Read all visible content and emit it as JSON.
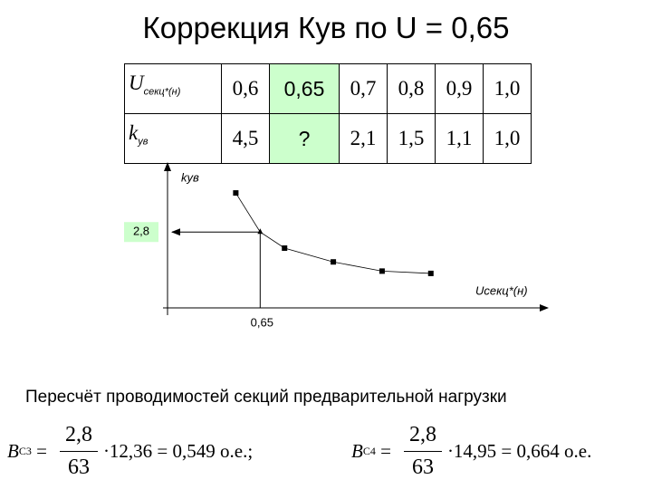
{
  "title": "Коррекция Кув по U = 0,65",
  "table": {
    "rows": [
      [
        {
          "symbol": "U",
          "sub": "секц*(н)"
        },
        "0,6",
        "0,65",
        "0,7",
        "0,8",
        "0,9",
        "1,0"
      ],
      [
        {
          "symbol": "k",
          "sub": "ув"
        },
        "4,5",
        "?",
        "2,1",
        "1,5",
        "1,1",
        "1,0"
      ]
    ]
  },
  "chart_data": {
    "type": "line",
    "y_label": "kув",
    "x_label": "Uсекц*(н)",
    "x": [
      0.6,
      0.65,
      0.7,
      0.8,
      0.9,
      1.0
    ],
    "values": [
      4.5,
      2.8,
      2.1,
      1.5,
      1.1,
      1.0
    ],
    "xlim": [
      0.46,
      1.24
    ],
    "ylim": [
      -0.5,
      6
    ],
    "color": "#000000",
    "annotations": [
      "2,8",
      "0,65"
    ]
  },
  "caption": "Пересчёт проводимостей секций предварительной нагрузки",
  "formulas": [
    {
      "symbol": "B",
      "sub": "C3",
      "eq": "=",
      "numerator": "2,8",
      "denominator": "63",
      "rest": "·12,36 = 0,549 о.е.;"
    },
    {
      "symbol": "B",
      "sub": "C4",
      "eq": "=",
      "numerator": "2,8",
      "denominator": "63",
      "rest": "·14,95 = 0,664 о.е."
    }
  ]
}
